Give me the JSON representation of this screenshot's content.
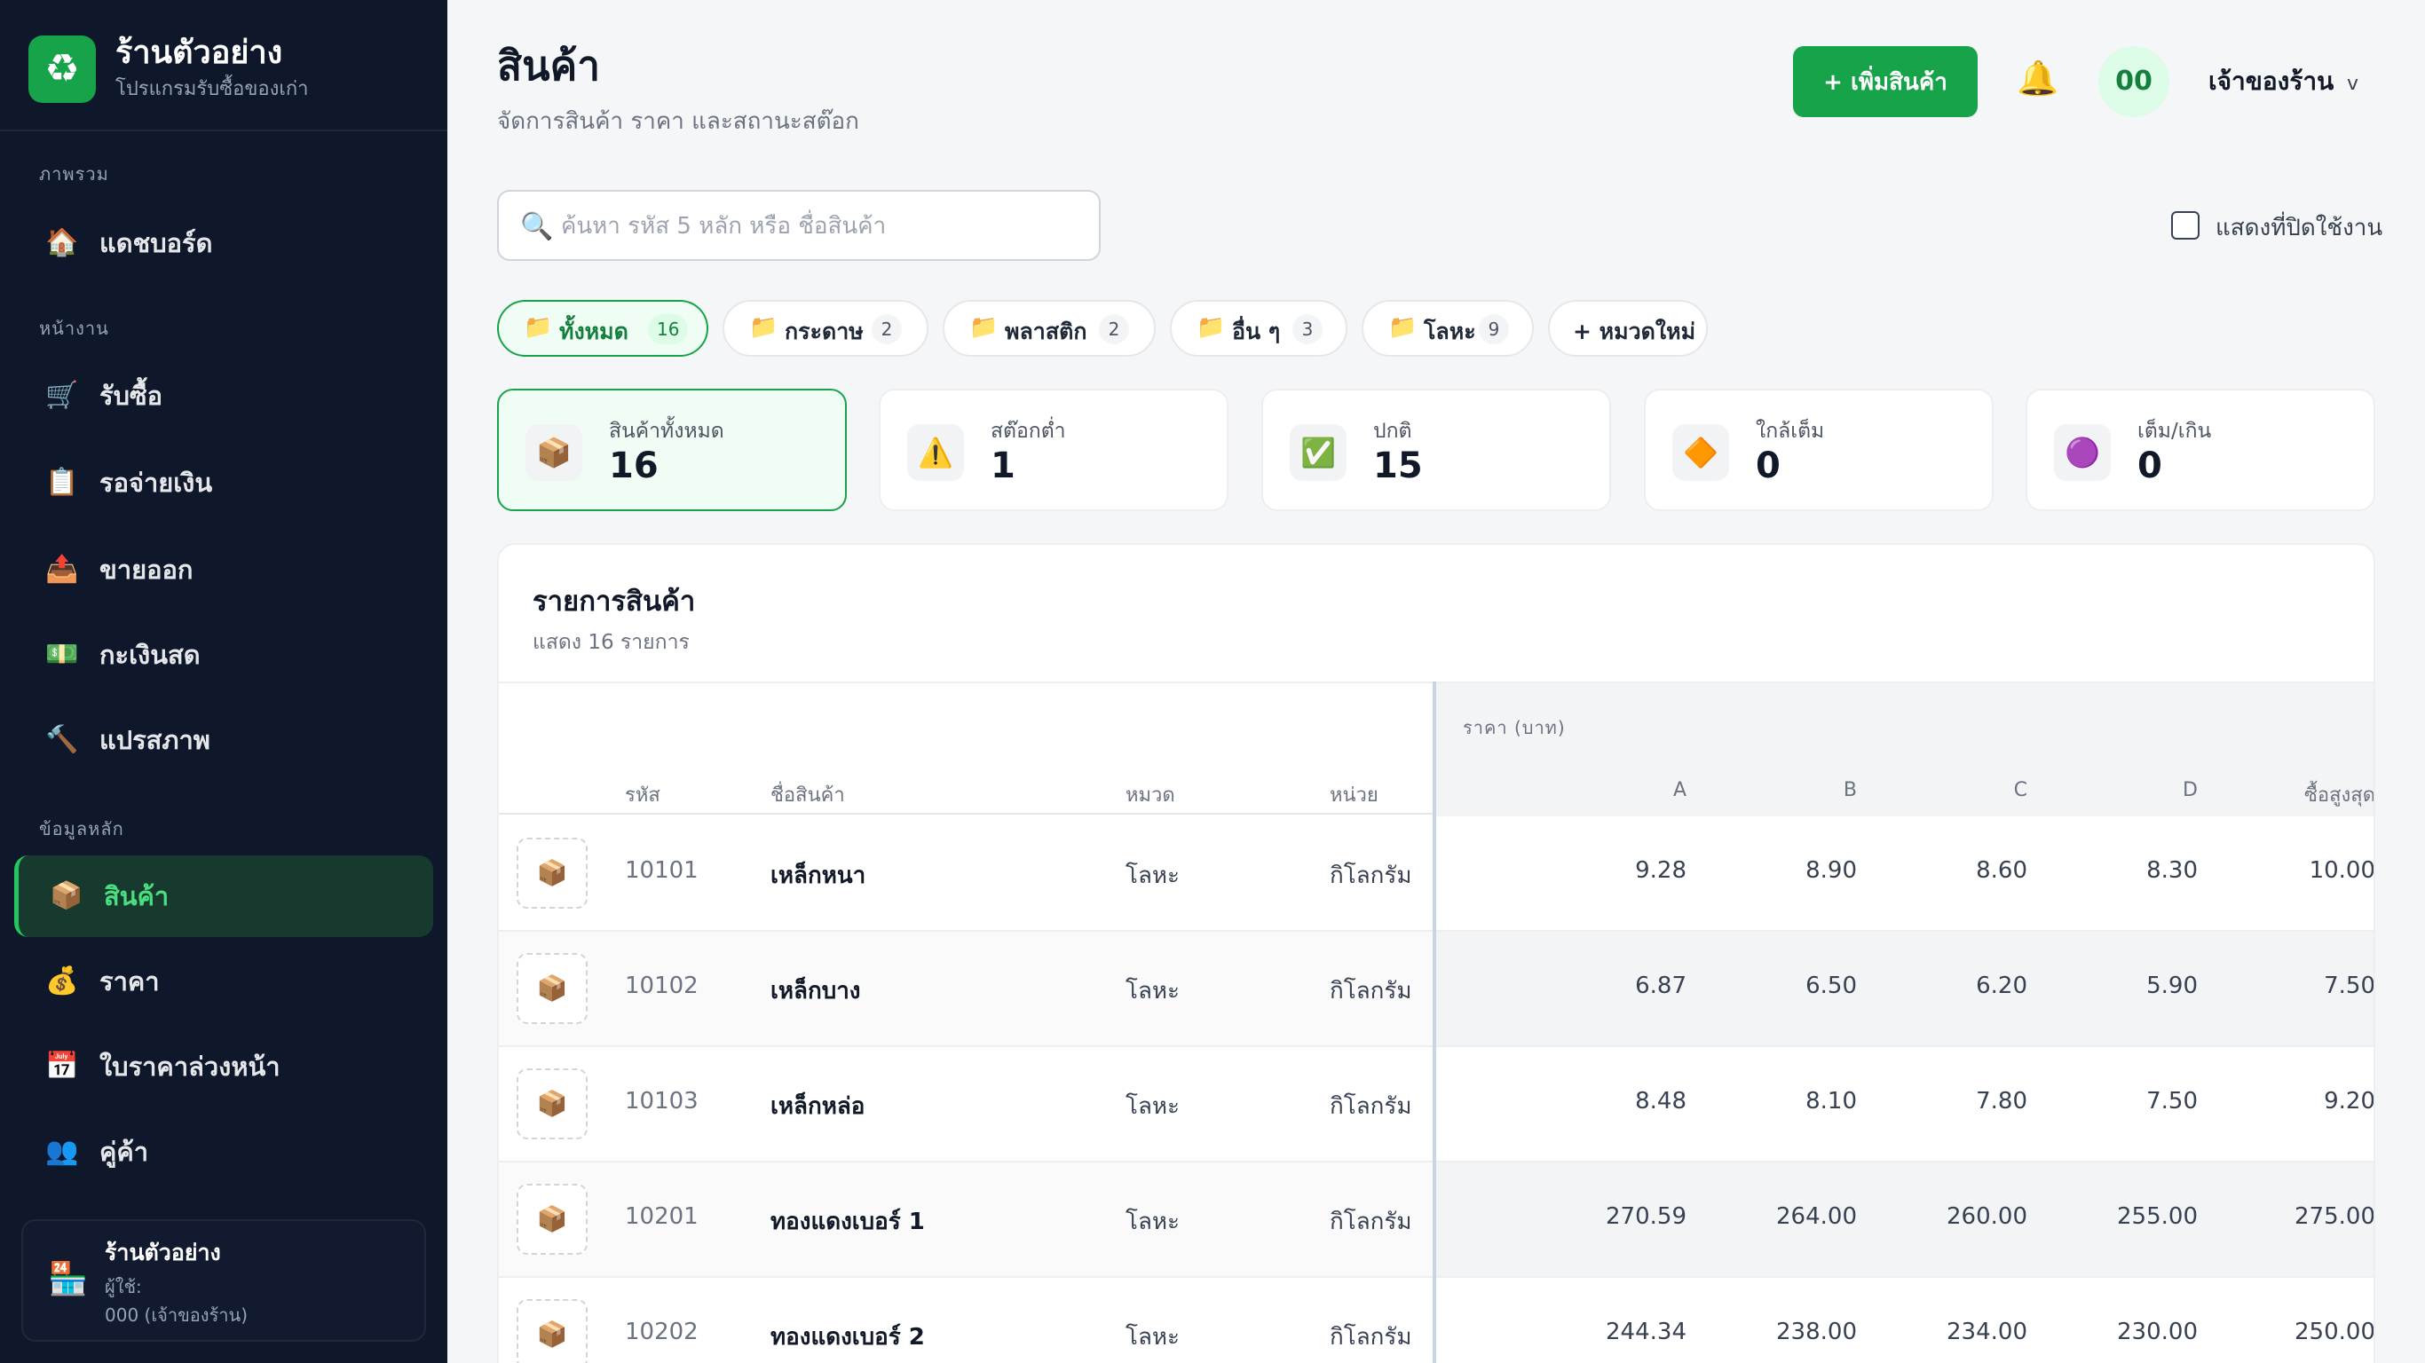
{
  "sidebar": {
    "brand": {
      "title": "ร้านตัวอย่าง",
      "subtitle": "โปรแกรมรับซื้อของเก่า",
      "logo_icon": "recycle-icon"
    },
    "sections": [
      {
        "label": "ภาพรวม",
        "items": [
          {
            "label": "แดชบอร์ด",
            "icon": "🏠"
          }
        ]
      },
      {
        "label": "หน้างาน",
        "items": [
          {
            "label": "รับซื้อ",
            "icon": "🛒"
          },
          {
            "label": "รอจ่ายเงิน",
            "icon": "📋"
          },
          {
            "label": "ขายออก",
            "icon": "📤"
          },
          {
            "label": "กะเงินสด",
            "icon": "💵"
          },
          {
            "label": "แปรสภาพ",
            "icon": "🔨"
          }
        ]
      },
      {
        "label": "ข้อมูลหลัก",
        "items": [
          {
            "label": "สินค้า",
            "icon": "📦",
            "active": true
          },
          {
            "label": "ราคา",
            "icon": "💰"
          },
          {
            "label": "ใบราคาล่วงหน้า",
            "icon": "📅"
          },
          {
            "label": "คู่ค้า",
            "icon": "👥"
          }
        ]
      }
    ],
    "store": {
      "name": "ร้านตัวอย่าง",
      "user_label": "ผู้ใช้:",
      "user": "000 (เจ้าของร้าน)",
      "icon": "🏪"
    }
  },
  "header": {
    "title": "สินค้า",
    "subtitle": "จัดการสินค้า ราคา และสถานะสต๊อก",
    "add_button": "+ เพิ่มสินค้า",
    "bell_icon": "🔔",
    "avatar": "00",
    "owner": "เจ้าของร้าน",
    "chevron": "v"
  },
  "search": {
    "placeholder": "ค้นหา รหัส 5 หลัก หรือ ชื่อสินค้า",
    "value": ""
  },
  "show_inactive": {
    "label": "แสดงที่ปิดใช้งาน",
    "checked": false
  },
  "categories": [
    {
      "label": "ทั้งหมด",
      "count": "16",
      "active": true
    },
    {
      "label": "กระดาษ",
      "count": "2"
    },
    {
      "label": "พลาสติก",
      "count": "2"
    },
    {
      "label": "อื่น ๆ",
      "count": "3"
    },
    {
      "label": "โลหะ",
      "count": "9"
    }
  ],
  "add_category": "+ หมวดใหม่",
  "stats": [
    {
      "label": "สินค้าทั้งหมด",
      "value": "16",
      "icon": "📦"
    },
    {
      "label": "สต๊อกต่ำ",
      "value": "1",
      "icon": "⚠️"
    },
    {
      "label": "ปกติ",
      "value": "15",
      "icon": "✅"
    },
    {
      "label": "ใกล้เต็ม",
      "value": "0",
      "icon": "🔶"
    },
    {
      "label": "เต็ม/เกิน",
      "value": "0",
      "icon": "🟣"
    }
  ],
  "products": {
    "title": "รายการสินค้า",
    "subtitle": "แสดง 16 รายการ",
    "price_group": "ราคา (บาท)",
    "columns": {
      "code": "รหัส",
      "name": "ชื่อสินค้า",
      "category": "หมวด",
      "unit": "หน่วย",
      "a": "A",
      "b": "B",
      "c": "C",
      "d": "D",
      "max": "ซื้อสูงสุด"
    },
    "rows": [
      {
        "code": "10101",
        "name": "เหล็กหนา",
        "category": "โลหะ",
        "unit": "กิโลกรัม",
        "a": "9.28",
        "b": "8.90",
        "c": "8.60",
        "d": "8.30",
        "max": "10.00"
      },
      {
        "code": "10102",
        "name": "เหล็กบาง",
        "category": "โลหะ",
        "unit": "กิโลกรัม",
        "a": "6.87",
        "b": "6.50",
        "c": "6.20",
        "d": "5.90",
        "max": "7.50"
      },
      {
        "code": "10103",
        "name": "เหล็กหล่อ",
        "category": "โลหะ",
        "unit": "กิโลกรัม",
        "a": "8.48",
        "b": "8.10",
        "c": "7.80",
        "d": "7.50",
        "max": "9.20"
      },
      {
        "code": "10201",
        "name": "ทองแดงเบอร์ 1",
        "category": "โลหะ",
        "unit": "กิโลกรัม",
        "a": "270.59",
        "b": "264.00",
        "c": "260.00",
        "d": "255.00",
        "max": "275.00"
      },
      {
        "code": "10202",
        "name": "ทองแดงเบอร์ 2",
        "category": "โลหะ",
        "unit": "กิโลกรัม",
        "a": "244.34",
        "b": "238.00",
        "c": "234.00",
        "d": "230.00",
        "max": "250.00"
      }
    ]
  }
}
